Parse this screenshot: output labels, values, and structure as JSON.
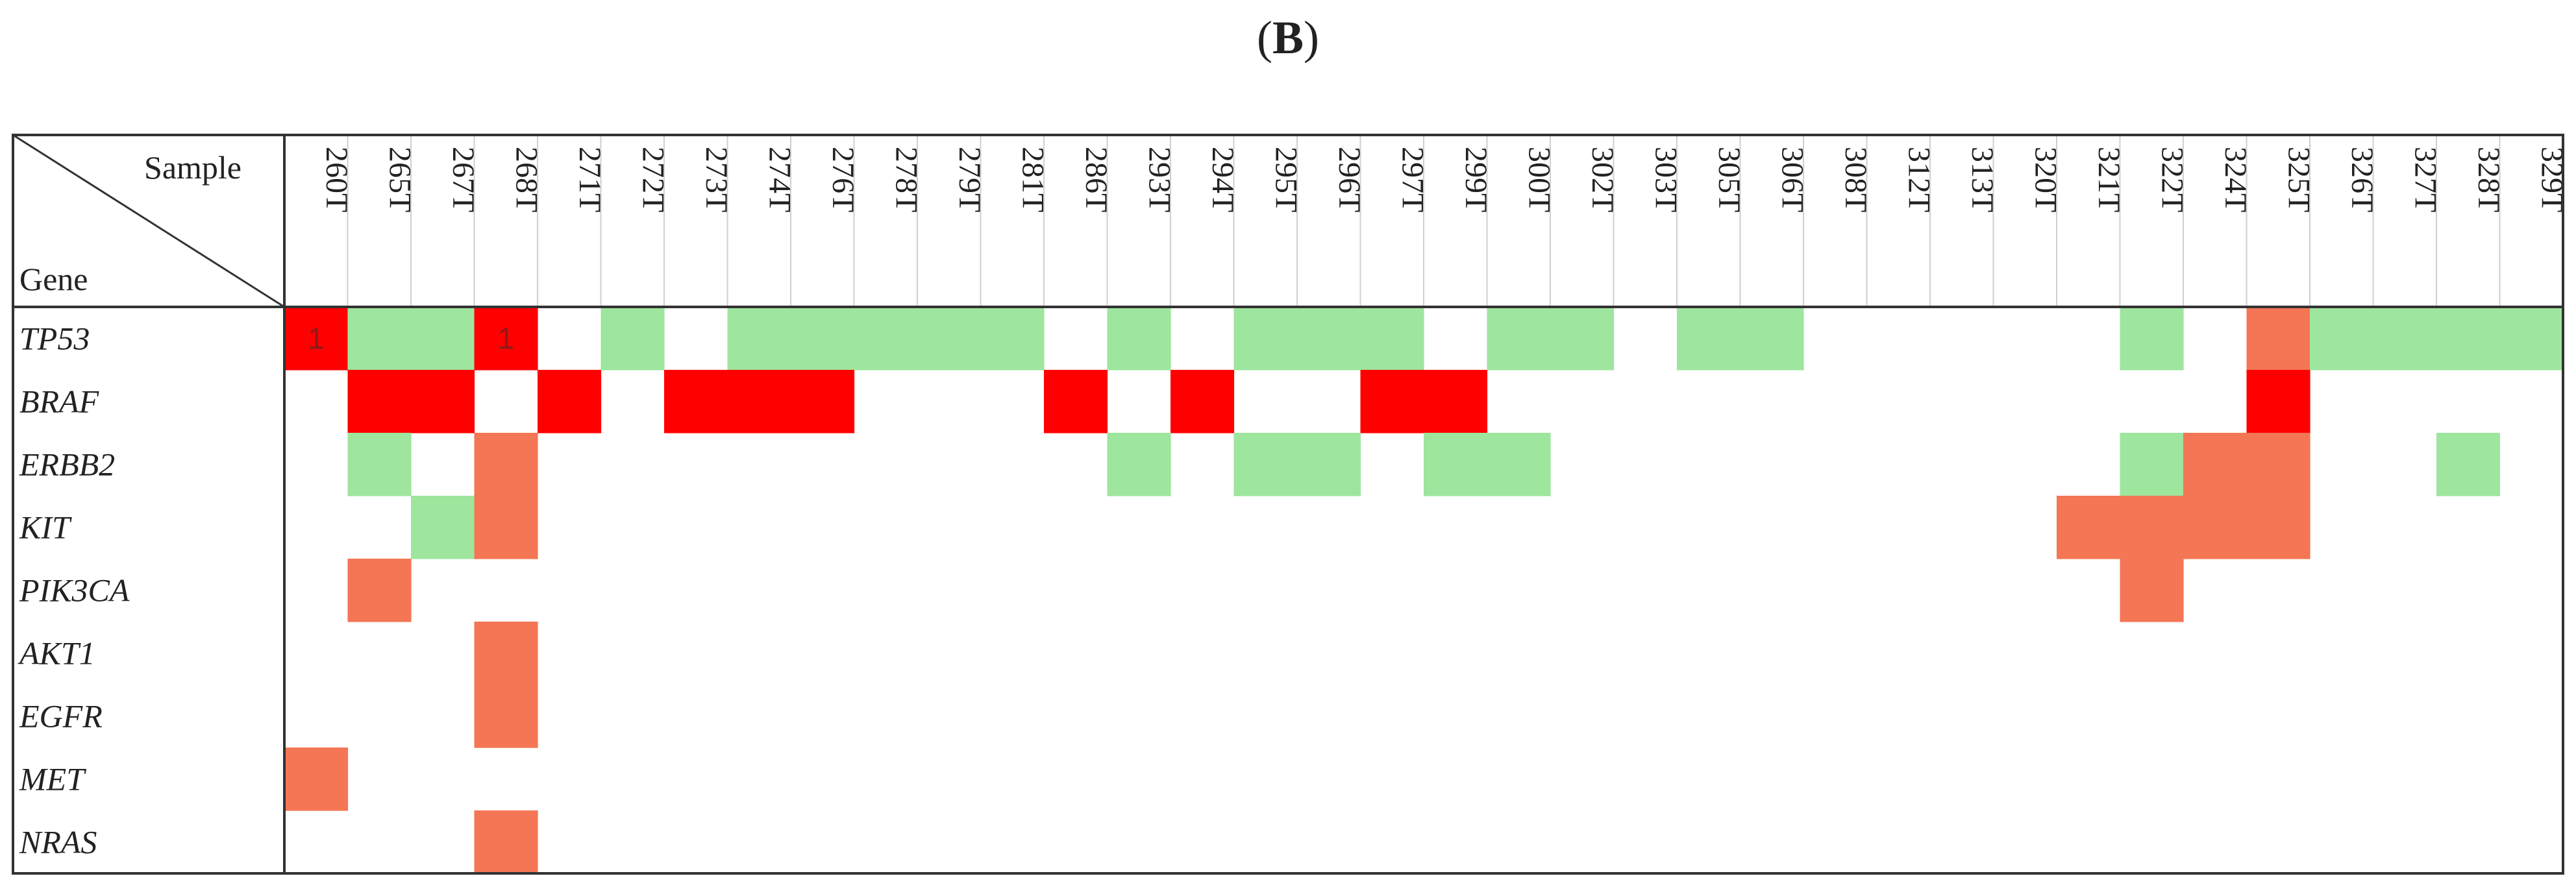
{
  "figure": {
    "panel_label": "B"
  },
  "chart_data": {
    "type": "heatmap",
    "corner_header": {
      "column_axis": "Sample",
      "row_axis": "Gene"
    },
    "samples": [
      "260T",
      "265T",
      "267T",
      "268T",
      "271T",
      "272T",
      "273T",
      "274T",
      "276T",
      "278T",
      "279T",
      "281T",
      "286T",
      "293T",
      "294T",
      "295T",
      "296T",
      "297T",
      "299T",
      "300T",
      "302T",
      "303T",
      "305T",
      "306T",
      "308T",
      "312T",
      "313T",
      "320T",
      "321T",
      "322T",
      "324T",
      "325T",
      "326T",
      "327T",
      "328T",
      "329T"
    ],
    "genes": [
      "TP53",
      "BRAF",
      "ERBB2",
      "KIT",
      "PIK3CA",
      "AKT1",
      "EGFR",
      "MET",
      "NRAS"
    ],
    "colors": {
      "0": "#ffffff",
      "1": "#9ee59e",
      "2": "#f47654",
      "3": "#ff0000"
    },
    "matrix": [
      [
        3,
        1,
        1,
        3,
        0,
        1,
        0,
        1,
        1,
        1,
        1,
        1,
        0,
        1,
        0,
        1,
        1,
        1,
        0,
        1,
        1,
        0,
        1,
        1,
        0,
        0,
        0,
        0,
        0,
        1,
        0,
        2,
        1,
        1,
        1,
        1
      ],
      [
        0,
        3,
        3,
        0,
        3,
        0,
        3,
        3,
        3,
        0,
        0,
        0,
        3,
        0,
        3,
        0,
        0,
        3,
        3,
        0,
        0,
        0,
        0,
        0,
        0,
        0,
        0,
        0,
        0,
        0,
        0,
        3,
        0,
        0,
        0,
        0
      ],
      [
        0,
        1,
        0,
        2,
        0,
        0,
        0,
        0,
        0,
        0,
        0,
        0,
        0,
        1,
        0,
        1,
        1,
        0,
        1,
        1,
        0,
        0,
        0,
        0,
        0,
        0,
        0,
        0,
        0,
        1,
        2,
        2,
        0,
        0,
        1,
        0
      ],
      [
        0,
        0,
        1,
        2,
        0,
        0,
        0,
        0,
        0,
        0,
        0,
        0,
        0,
        0,
        0,
        0,
        0,
        0,
        0,
        0,
        0,
        0,
        0,
        0,
        0,
        0,
        0,
        0,
        2,
        2,
        2,
        2,
        0,
        0,
        0,
        0
      ],
      [
        0,
        2,
        0,
        0,
        0,
        0,
        0,
        0,
        0,
        0,
        0,
        0,
        0,
        0,
        0,
        0,
        0,
        0,
        0,
        0,
        0,
        0,
        0,
        0,
        0,
        0,
        0,
        0,
        0,
        2,
        0,
        0,
        0,
        0,
        0,
        0
      ],
      [
        0,
        0,
        0,
        2,
        0,
        0,
        0,
        0,
        0,
        0,
        0,
        0,
        0,
        0,
        0,
        0,
        0,
        0,
        0,
        0,
        0,
        0,
        0,
        0,
        0,
        0,
        0,
        0,
        0,
        0,
        0,
        0,
        0,
        0,
        0,
        0
      ],
      [
        0,
        0,
        0,
        2,
        0,
        0,
        0,
        0,
        0,
        0,
        0,
        0,
        0,
        0,
        0,
        0,
        0,
        0,
        0,
        0,
        0,
        0,
        0,
        0,
        0,
        0,
        0,
        0,
        0,
        0,
        0,
        0,
        0,
        0,
        0,
        0
      ],
      [
        2,
        0,
        0,
        0,
        0,
        0,
        0,
        0,
        0,
        0,
        0,
        0,
        0,
        0,
        0,
        0,
        0,
        0,
        0,
        0,
        0,
        0,
        0,
        0,
        0,
        0,
        0,
        0,
        0,
        0,
        0,
        0,
        0,
        0,
        0,
        0
      ],
      [
        0,
        0,
        0,
        2,
        0,
        0,
        0,
        0,
        0,
        0,
        0,
        0,
        0,
        0,
        0,
        0,
        0,
        0,
        0,
        0,
        0,
        0,
        0,
        0,
        0,
        0,
        0,
        0,
        0,
        0,
        0,
        0,
        0,
        0,
        0,
        0
      ]
    ],
    "cell_annotations": [
      {
        "gene": "TP53",
        "sample": "260T",
        "text": "1"
      },
      {
        "gene": "TP53",
        "sample": "268T",
        "text": "1"
      }
    ]
  }
}
